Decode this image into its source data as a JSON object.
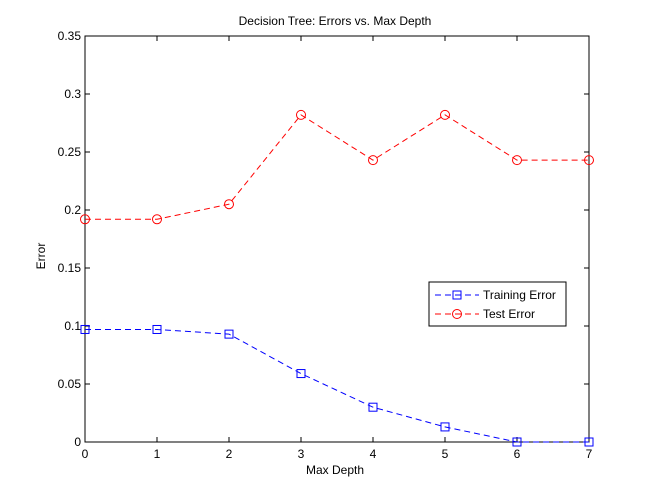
{
  "chart_data": {
    "type": "line",
    "title": "Decision Tree: Errors vs. Max Depth",
    "xlabel": "Max Depth",
    "ylabel": "Error",
    "xlim": [
      0,
      7
    ],
    "ylim": [
      0,
      0.35
    ],
    "xticks": [
      "0",
      "1",
      "2",
      "3",
      "4",
      "5",
      "6",
      "7"
    ],
    "yticks": [
      "0",
      "0.05",
      "0.1",
      "0.15",
      "0.2",
      "0.25",
      "0.3",
      "0.35"
    ],
    "grid": false,
    "legend_position": "center-right",
    "x": [
      0,
      1,
      2,
      3,
      4,
      5,
      6,
      7
    ],
    "series": [
      {
        "name": "Training Error",
        "color": "#0000ff",
        "marker": "square",
        "linestyle": "dashed",
        "values": [
          0.097,
          0.097,
          0.093,
          0.059,
          0.03,
          0.013,
          0.0,
          0.0
        ]
      },
      {
        "name": "Test Error",
        "color": "#ff0000",
        "marker": "circle",
        "linestyle": "dashed",
        "values": [
          0.192,
          0.192,
          0.205,
          0.282,
          0.243,
          0.282,
          0.243,
          0.243
        ]
      }
    ]
  }
}
